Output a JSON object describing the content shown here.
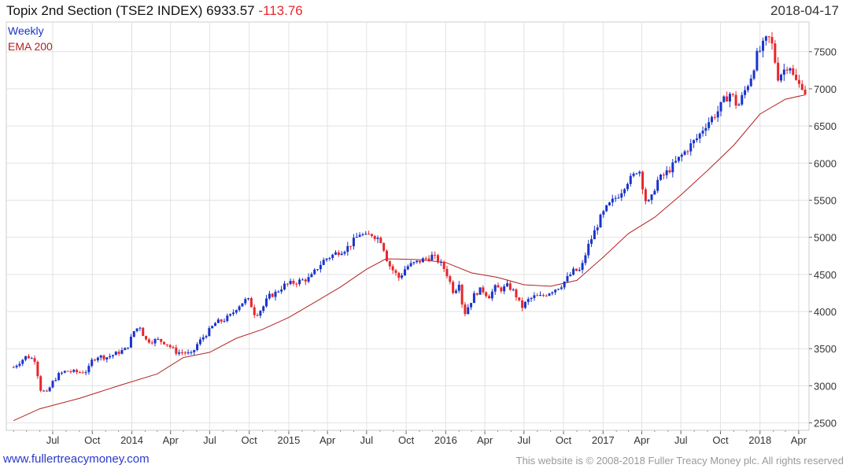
{
  "header": {
    "title": "Topix 2nd Section (TSE2 INDEX) 6933.57",
    "change": "-113.76",
    "date": "2018-04-17"
  },
  "legend": {
    "weekly": "Weekly",
    "ema": "EMA 200"
  },
  "footer": {
    "site": "www.fullertreacymoney.com",
    "copyright": "This website is © 2008-2018 Fuller Treacy Money plc. All rights reserved"
  },
  "colors": {
    "up": "#1a33cc",
    "down": "#e8262b",
    "ema": "#b22222",
    "grid": "#e2e2e2"
  },
  "chart_data": {
    "type": "line",
    "title": "Topix 2nd Section (TSE2 INDEX) 6933.57 -113.76",
    "xlabel": "",
    "ylabel": "",
    "ylim": [
      2400,
      7900
    ],
    "grid": true,
    "x_tick_labels": [
      "Jul",
      "Oct",
      "2014",
      "Apr",
      "Jul",
      "Oct",
      "2015",
      "Apr",
      "Jul",
      "Oct",
      "2016",
      "Apr",
      "Jul",
      "Oct",
      "2017",
      "Apr",
      "Jul",
      "Oct",
      "2018",
      "Apr"
    ],
    "y_ticks": [
      2500,
      3000,
      3500,
      4000,
      4500,
      5000,
      5500,
      6000,
      6500,
      7000,
      7500
    ],
    "series": [
      {
        "name": "Weekly",
        "style": "candlestick",
        "points": [
          [
            "2013-04-01",
            3250
          ],
          [
            "2013-05-01",
            3400
          ],
          [
            "2013-05-20",
            3350
          ],
          [
            "2013-06-03",
            2950
          ],
          [
            "2013-06-17",
            2900
          ],
          [
            "2013-07-01",
            3050
          ],
          [
            "2013-07-15",
            3150
          ],
          [
            "2013-08-01",
            3200
          ],
          [
            "2013-09-01",
            3180
          ],
          [
            "2013-09-20",
            3200
          ],
          [
            "2013-10-01",
            3350
          ],
          [
            "2013-10-15",
            3400
          ],
          [
            "2013-11-01",
            3380
          ],
          [
            "2013-11-20",
            3420
          ],
          [
            "2013-12-01",
            3450
          ],
          [
            "2013-12-20",
            3500
          ],
          [
            "2014-01-07",
            3750
          ],
          [
            "2014-01-20",
            3800
          ],
          [
            "2014-02-01",
            3620
          ],
          [
            "2014-02-15",
            3600
          ],
          [
            "2014-03-01",
            3620
          ],
          [
            "2014-03-20",
            3580
          ],
          [
            "2014-04-01",
            3520
          ],
          [
            "2014-04-15",
            3450
          ],
          [
            "2014-05-01",
            3450
          ],
          [
            "2014-05-20",
            3420
          ],
          [
            "2014-06-01",
            3550
          ],
          [
            "2014-06-15",
            3650
          ],
          [
            "2014-07-01",
            3750
          ],
          [
            "2014-07-15",
            3850
          ],
          [
            "2014-08-01",
            3880
          ],
          [
            "2014-08-20",
            3950
          ],
          [
            "2014-09-01",
            4050
          ],
          [
            "2014-09-20",
            4150
          ],
          [
            "2014-10-01",
            4150
          ],
          [
            "2014-10-15",
            3950
          ],
          [
            "2014-11-01",
            4050
          ],
          [
            "2014-11-15",
            4200
          ],
          [
            "2014-12-01",
            4250
          ],
          [
            "2014-12-20",
            4350
          ],
          [
            "2015-01-07",
            4380
          ],
          [
            "2015-02-01",
            4420
          ],
          [
            "2015-02-20",
            4450
          ],
          [
            "2015-03-10",
            4600
          ],
          [
            "2015-03-25",
            4700
          ],
          [
            "2015-04-10",
            4750
          ],
          [
            "2015-04-25",
            4800
          ],
          [
            "2015-05-15",
            4850
          ],
          [
            "2015-06-01",
            4950
          ],
          [
            "2015-06-15",
            5050
          ],
          [
            "2015-07-01",
            5000
          ],
          [
            "2015-07-10",
            5050
          ],
          [
            "2015-07-25",
            5000
          ],
          [
            "2015-08-05",
            4950
          ],
          [
            "2015-08-20",
            4650
          ],
          [
            "2015-09-01",
            4550
          ],
          [
            "2015-09-15",
            4450
          ],
          [
            "2015-10-01",
            4600
          ],
          [
            "2015-10-20",
            4650
          ],
          [
            "2015-11-10",
            4700
          ],
          [
            "2015-12-01",
            4750
          ],
          [
            "2015-12-15",
            4680
          ],
          [
            "2016-01-01",
            4550
          ],
          [
            "2016-01-20",
            4250
          ],
          [
            "2016-02-01",
            4400
          ],
          [
            "2016-02-12",
            3950
          ],
          [
            "2016-02-25",
            4100
          ],
          [
            "2016-03-10",
            4250
          ],
          [
            "2016-03-25",
            4300
          ],
          [
            "2016-04-10",
            4200
          ],
          [
            "2016-04-25",
            4320
          ],
          [
            "2016-05-10",
            4300
          ],
          [
            "2016-05-25",
            4350
          ],
          [
            "2016-06-10",
            4250
          ],
          [
            "2016-06-25",
            4050
          ],
          [
            "2016-07-10",
            4150
          ],
          [
            "2016-07-25",
            4200
          ],
          [
            "2016-08-10",
            4200
          ],
          [
            "2016-08-25",
            4250
          ],
          [
            "2016-09-10",
            4300
          ],
          [
            "2016-09-25",
            4350
          ],
          [
            "2016-10-10",
            4450
          ],
          [
            "2016-10-25",
            4550
          ],
          [
            "2016-11-10",
            4550
          ],
          [
            "2016-11-25",
            4850
          ],
          [
            "2016-12-10",
            5050
          ],
          [
            "2016-12-25",
            5250
          ],
          [
            "2017-01-10",
            5400
          ],
          [
            "2017-01-25",
            5500
          ],
          [
            "2017-02-10",
            5600
          ],
          [
            "2017-02-25",
            5750
          ],
          [
            "2017-03-10",
            5800
          ],
          [
            "2017-03-25",
            5950
          ],
          [
            "2017-04-10",
            5500
          ],
          [
            "2017-04-20",
            5450
          ],
          [
            "2017-05-05",
            5750
          ],
          [
            "2017-05-25",
            5850
          ],
          [
            "2017-06-10",
            5950
          ],
          [
            "2017-06-25",
            6050
          ],
          [
            "2017-07-10",
            6150
          ],
          [
            "2017-07-25",
            6250
          ],
          [
            "2017-08-10",
            6350
          ],
          [
            "2017-08-25",
            6500
          ],
          [
            "2017-09-10",
            6600
          ],
          [
            "2017-09-25",
            6700
          ],
          [
            "2017-10-10",
            6850
          ],
          [
            "2017-10-25",
            6950
          ],
          [
            "2017-11-10",
            6750
          ],
          [
            "2017-11-25",
            6950
          ],
          [
            "2017-12-10",
            7150
          ],
          [
            "2017-12-25",
            7450
          ],
          [
            "2018-01-10",
            7600
          ],
          [
            "2018-01-20",
            7700
          ],
          [
            "2018-02-01",
            7550
          ],
          [
            "2018-02-10",
            7150
          ],
          [
            "2018-02-25",
            7250
          ],
          [
            "2018-03-10",
            7350
          ],
          [
            "2018-03-20",
            7150
          ],
          [
            "2018-04-01",
            7050
          ],
          [
            "2018-04-12",
            7047
          ],
          [
            "2018-04-17",
            6934
          ]
        ]
      },
      {
        "name": "EMA 200",
        "style": "line",
        "points": [
          [
            "2013-04-01",
            2530
          ],
          [
            "2013-06-01",
            2690
          ],
          [
            "2013-09-01",
            2830
          ],
          [
            "2013-12-01",
            3000
          ],
          [
            "2014-03-01",
            3160
          ],
          [
            "2014-05-01",
            3380
          ],
          [
            "2014-07-01",
            3450
          ],
          [
            "2014-09-01",
            3640
          ],
          [
            "2014-11-01",
            3760
          ],
          [
            "2015-01-01",
            3920
          ],
          [
            "2015-03-01",
            4120
          ],
          [
            "2015-05-01",
            4330
          ],
          [
            "2015-07-01",
            4570
          ],
          [
            "2015-08-15",
            4710
          ],
          [
            "2015-11-01",
            4700
          ],
          [
            "2016-01-01",
            4660
          ],
          [
            "2016-03-01",
            4520
          ],
          [
            "2016-05-01",
            4460
          ],
          [
            "2016-07-01",
            4360
          ],
          [
            "2016-09-01",
            4340
          ],
          [
            "2016-11-01",
            4420
          ],
          [
            "2017-01-01",
            4730
          ],
          [
            "2017-03-01",
            5050
          ],
          [
            "2017-05-01",
            5270
          ],
          [
            "2017-07-01",
            5570
          ],
          [
            "2017-09-01",
            5900
          ],
          [
            "2017-11-01",
            6240
          ],
          [
            "2018-01-01",
            6660
          ],
          [
            "2018-03-01",
            6860
          ],
          [
            "2018-04-17",
            6920
          ]
        ]
      }
    ]
  }
}
